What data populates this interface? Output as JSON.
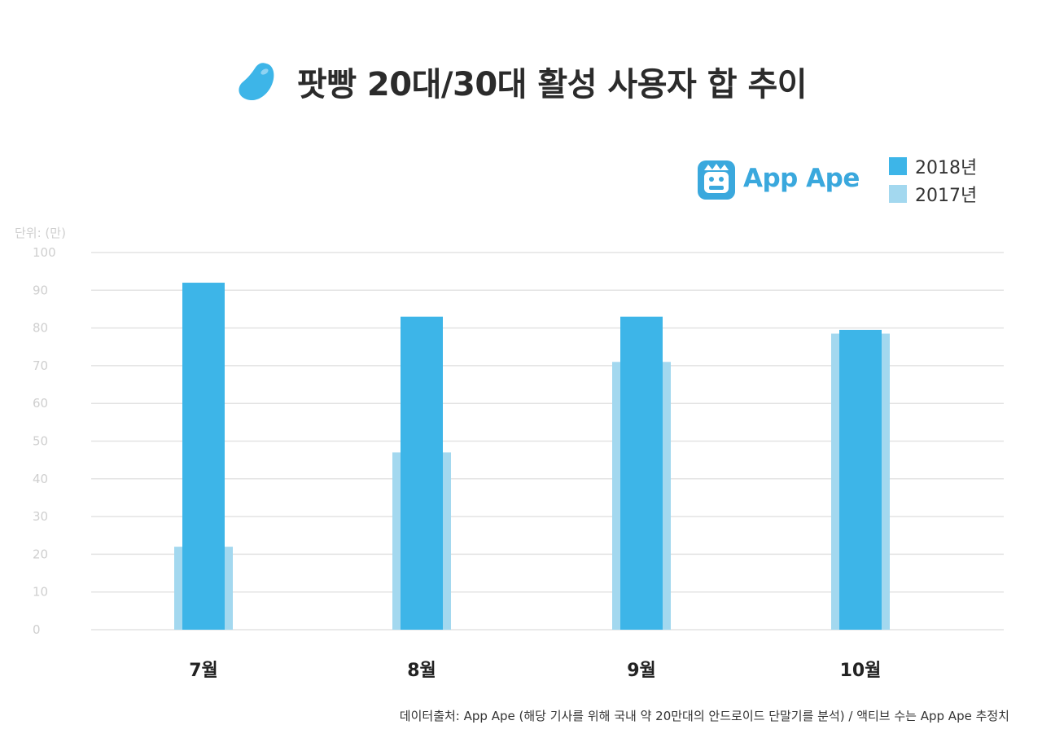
{
  "title": "팟빵 20대/30대 활성 사용자 합 추이",
  "icons": {
    "title_icon": "bean-icon",
    "brand_icon": "ape-face-icon"
  },
  "brand": {
    "name": "App Ape"
  },
  "colors": {
    "series_2018": "#3db5e8",
    "series_2017": "#a3d8ef",
    "grid": "#e3e3e3",
    "brand": "#3aa8dd"
  },
  "unit_label": "단위: (만)",
  "source_note": "데이터출처: App Ape (해당 기사를 위해 국내 약 20만대의 안드로이드 단말기를 분석) / 액티브 수는 App Ape 추정치",
  "chart_data": {
    "type": "bar",
    "title": "팟빵 20대/30대 활성 사용자 합 추이",
    "xlabel": "",
    "ylabel": "단위: (만)",
    "categories": [
      "7월",
      "8월",
      "9월",
      "10월"
    ],
    "series": [
      {
        "name": "2018년",
        "values": [
          92,
          83,
          83,
          79.5
        ]
      },
      {
        "name": "2017년",
        "values": [
          22,
          47,
          71,
          78.5
        ]
      }
    ],
    "ylim": [
      0,
      100
    ],
    "yticks": [
      0,
      10,
      20,
      30,
      40,
      50,
      60,
      70,
      80,
      90,
      100
    ],
    "grid": true,
    "legend_position": "top-right"
  }
}
